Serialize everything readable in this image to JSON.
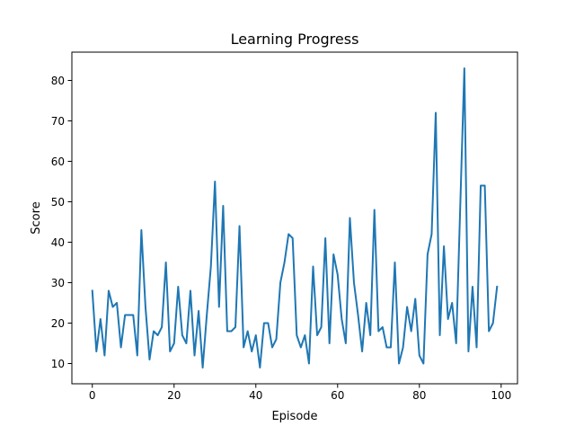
{
  "chart_data": {
    "type": "line",
    "title": "Learning Progress",
    "xlabel": "Episode",
    "ylabel": "Score",
    "xlim": [
      -5,
      104
    ],
    "ylim": [
      5,
      87
    ],
    "xticks": [
      0,
      20,
      40,
      60,
      80,
      100
    ],
    "yticks": [
      10,
      20,
      30,
      40,
      50,
      60,
      70,
      80
    ],
    "grid": false,
    "line_color": "#1f77b4",
    "x": [
      0,
      1,
      2,
      3,
      4,
      5,
      6,
      7,
      8,
      9,
      10,
      11,
      12,
      13,
      14,
      15,
      16,
      17,
      18,
      19,
      20,
      21,
      22,
      23,
      24,
      25,
      26,
      27,
      28,
      29,
      30,
      31,
      32,
      33,
      34,
      35,
      36,
      37,
      38,
      39,
      40,
      41,
      42,
      43,
      44,
      45,
      46,
      47,
      48,
      49,
      50,
      51,
      52,
      53,
      54,
      55,
      56,
      57,
      58,
      59,
      60,
      61,
      62,
      63,
      64,
      65,
      66,
      67,
      68,
      69,
      70,
      71,
      72,
      73,
      74,
      75,
      76,
      77,
      78,
      79,
      80,
      81,
      82,
      83,
      84,
      85,
      86,
      87,
      88,
      89,
      90,
      91,
      92,
      93,
      94,
      95,
      96,
      97,
      98,
      99
    ],
    "series": [
      {
        "values": [
          28,
          13,
          21,
          12,
          28,
          24,
          25,
          14,
          22,
          22,
          22,
          12,
          43,
          24,
          11,
          18,
          17,
          19,
          35,
          13,
          15,
          29,
          17,
          15,
          28,
          12,
          23,
          9,
          22,
          34,
          55,
          24,
          49,
          18,
          18,
          19,
          44,
          14,
          18,
          13,
          17,
          9,
          20,
          20,
          14,
          16,
          30,
          35,
          42,
          41,
          17,
          14,
          17,
          10,
          34,
          17,
          19,
          41,
          15,
          37,
          32,
          21,
          15,
          46,
          30,
          22,
          13,
          25,
          17,
          48,
          18,
          19,
          14,
          14,
          35,
          10,
          14,
          24,
          18,
          26,
          12,
          10,
          37,
          42,
          72,
          17,
          39,
          21,
          25,
          15,
          49,
          83,
          13,
          29,
          14,
          54,
          54,
          18,
          20,
          29
        ]
      }
    ]
  }
}
